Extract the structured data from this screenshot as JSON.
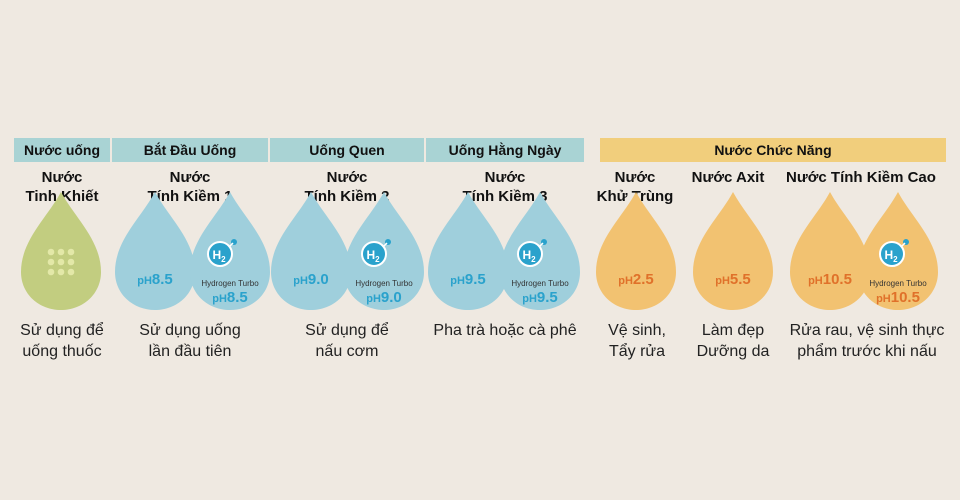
{
  "header": {
    "nuoc_uong": "Nước uống",
    "bat_dau_uong": "Bắt Đầu Uống",
    "uong_quen": "Uống Quen",
    "uong_hang_ngay": "Uống Hằng Ngày",
    "nuoc_chuc_nang": "Nước Chức Năng"
  },
  "columns": [
    {
      "title": [
        "Nước",
        "Tinh Khiết"
      ],
      "desc": [
        "Sử dụng để",
        "uống thuốc"
      ]
    },
    {
      "title": [
        "Nước",
        "Tính Kiềm 1"
      ],
      "ph_prefix": "pH",
      "ph_value": "8.5",
      "turbo_label": "Hydrogen Turbo",
      "turbo_value": "8.5",
      "desc": [
        "Sử dụng uống",
        "lần đầu tiên"
      ]
    },
    {
      "title": [
        "Nước",
        "Tính Kiềm 2"
      ],
      "ph_prefix": "pH",
      "ph_value": "9.0",
      "turbo_label": "Hydrogen Turbo",
      "turbo_value": "9.0",
      "desc": [
        "Sử dụng để",
        "nấu cơm"
      ]
    },
    {
      "title": [
        "Nước",
        "Tính Kiềm 3"
      ],
      "ph_prefix": "pH",
      "ph_value": "9.5",
      "turbo_label": "Hydrogen Turbo",
      "turbo_value": "9.5",
      "desc": [
        "Pha trà hoặc cà phê"
      ]
    },
    {
      "title": [
        "Nước",
        "Khử Trùng"
      ],
      "ph_prefix": "pH",
      "ph_value": "2.5",
      "desc": [
        "Vệ sinh,",
        "Tẩy rửa"
      ]
    },
    {
      "title": [
        "Nước Axit"
      ],
      "ph_prefix": "pH",
      "ph_value": "5.5",
      "desc": [
        "Làm đẹp",
        "Dưỡng da"
      ]
    },
    {
      "title": [
        "Nước Tính Kiềm Cao"
      ],
      "ph_prefix": "pH",
      "ph_value": "10.5",
      "turbo_label": "Hydrogen Turbo",
      "turbo_value": "10.5",
      "desc": [
        "Rửa rau, vệ sinh thực",
        "phẩm trước khi nấu"
      ]
    }
  ],
  "h2_symbol": "H",
  "h2_sub": "2",
  "colors": {
    "teal": "#a9d3d4",
    "gold": "#f1ce7c",
    "drop_green": "#c2cd80",
    "drop_blue": "#9fcfdc",
    "drop_orange": "#f2c271",
    "ph_blue": "#2aa2cc",
    "ph_orange": "#e0712a"
  }
}
